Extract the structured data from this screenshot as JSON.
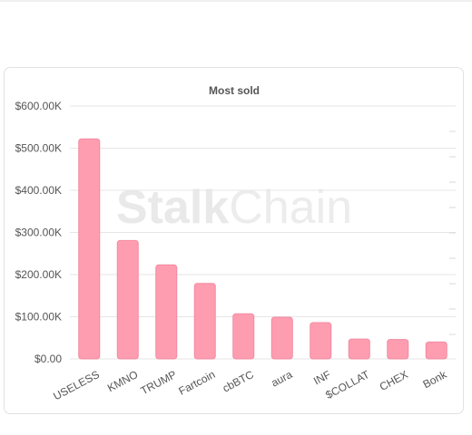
{
  "chart_data": {
    "type": "bar",
    "title": "Most sold",
    "xlabel": "",
    "ylabel": "",
    "categories": [
      "USELESS",
      "KMNO",
      "TRUMP",
      "Fartcoin",
      "cbBTC",
      "aura",
      "INF",
      "$COLLAT",
      "CHEX",
      "Bonk"
    ],
    "values": [
      522000,
      281000,
      223000,
      179000,
      107000,
      99000,
      86000,
      47000,
      46000,
      40000
    ],
    "ylim": [
      0,
      600000
    ],
    "yticks": [
      0,
      100000,
      200000,
      300000,
      400000,
      500000,
      600000
    ],
    "ytick_labels": [
      "$0.00",
      "$100.00K",
      "$200.00K",
      "$300.00K",
      "$400.00K",
      "$500.00K",
      "$600.00K"
    ],
    "grid": true,
    "legend": "none",
    "bar_color": "#ff9db0",
    "bar_border_color": "#f28aa0"
  },
  "watermark": {
    "part1": "Stalk",
    "part2": "Chain"
  }
}
